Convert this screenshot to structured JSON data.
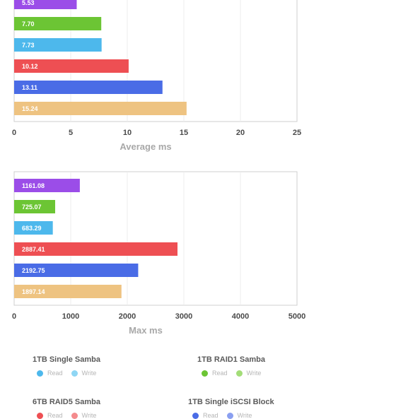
{
  "chart_data": [
    {
      "type": "bar",
      "orientation": "horizontal",
      "xlabel": "Average ms",
      "xlim": [
        0,
        25
      ],
      "ticks": [
        "0",
        "5",
        "10",
        "15",
        "20",
        "25"
      ],
      "grid": true,
      "bars": [
        {
          "value": 5.53,
          "label": "5.53",
          "color": "#9b4de8"
        },
        {
          "value": 7.7,
          "label": "7.70",
          "color": "#6cc534"
        },
        {
          "value": 7.73,
          "label": "7.73",
          "color": "#4db8ec"
        },
        {
          "value": 10.12,
          "label": "10.12",
          "color": "#ee4f53"
        },
        {
          "value": 13.11,
          "label": "13.11",
          "color": "#4a6ce6"
        },
        {
          "value": 15.24,
          "label": "15.24",
          "color": "#eec381"
        }
      ]
    },
    {
      "type": "bar",
      "orientation": "horizontal",
      "xlabel": "Max ms",
      "xlim": [
        0,
        5000
      ],
      "ticks": [
        "0",
        "1000",
        "2000",
        "3000",
        "4000",
        "5000"
      ],
      "grid": true,
      "bars": [
        {
          "value": 1161.08,
          "label": "1161.08",
          "color": "#9b4de8"
        },
        {
          "value": 725.07,
          "label": "725.07",
          "color": "#6cc534"
        },
        {
          "value": 683.29,
          "label": "683.29",
          "color": "#4db8ec"
        },
        {
          "value": 2887.41,
          "label": "2887.41",
          "color": "#ee4f53"
        },
        {
          "value": 2192.75,
          "label": "2192.75",
          "color": "#4a6ce6"
        },
        {
          "value": 1897.14,
          "label": "1897.14",
          "color": "#eec381"
        }
      ]
    }
  ],
  "legend": [
    {
      "title": "1TB Single Samba",
      "items": [
        {
          "label": "Read",
          "color": "#4db8ec"
        },
        {
          "label": "Write",
          "color": "#8fd6f4"
        }
      ]
    },
    {
      "title": "1TB RAID1 Samba",
      "items": [
        {
          "label": "Read",
          "color": "#6cc534"
        },
        {
          "label": "Write",
          "color": "#a3dd78"
        }
      ]
    },
    {
      "title": "6TB RAID5 Samba",
      "items": [
        {
          "label": "Read",
          "color": "#ee4f53"
        },
        {
          "label": "Write",
          "color": "#f48b8d"
        }
      ]
    },
    {
      "title": "1TB Single iSCSI Block",
      "items": [
        {
          "label": "Read",
          "color": "#4a6ce6"
        },
        {
          "label": "Write",
          "color": "#8a9ff0"
        }
      ]
    }
  ]
}
